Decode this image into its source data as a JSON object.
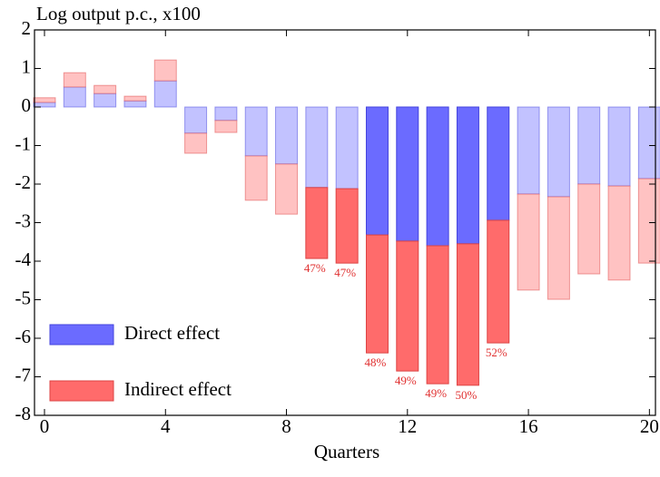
{
  "chart_data": {
    "type": "stacked-bar",
    "y_label": "Log output p.c., x100",
    "x_label": "Quarters",
    "x": [
      0,
      1,
      2,
      3,
      4,
      5,
      6,
      7,
      8,
      9,
      10,
      11,
      12,
      13,
      14,
      15,
      16,
      17,
      18,
      19,
      20
    ],
    "xlim": [
      -0.33,
      20.2
    ],
    "xticks": [
      0,
      4,
      8,
      12,
      16,
      20
    ],
    "ylim": [
      -8,
      2
    ],
    "yticks": [
      -8,
      -7,
      -6,
      -5,
      -4,
      -3,
      -2,
      -1,
      0,
      1,
      2
    ],
    "legend": "lower left",
    "series": [
      {
        "name": "Direct effect",
        "color": "#6b6bff",
        "light_color": "#c2c2ff",
        "edge_color": "#4444dd",
        "highlighted": [
          false,
          false,
          false,
          false,
          false,
          false,
          false,
          false,
          false,
          false,
          false,
          true,
          true,
          true,
          true,
          true,
          false,
          false,
          false,
          false,
          false
        ],
        "values": [
          0.12,
          0.52,
          0.35,
          0.16,
          0.68,
          -0.68,
          -0.35,
          -1.27,
          -1.48,
          -2.09,
          -2.12,
          -3.32,
          -3.48,
          -3.6,
          -3.55,
          -2.94,
          -2.26,
          -2.33,
          -2.0,
          -2.05,
          -1.86
        ]
      },
      {
        "name": "Indirect effect",
        "color": "#ff6b6b",
        "light_color": "#ffc2c2",
        "edge_color": "#dd4444",
        "highlighted": [
          false,
          false,
          false,
          false,
          false,
          false,
          false,
          false,
          false,
          true,
          true,
          true,
          true,
          true,
          true,
          true,
          false,
          false,
          false,
          false,
          false
        ],
        "values": [
          0.12,
          0.37,
          0.21,
          0.12,
          0.54,
          -0.52,
          -0.31,
          -1.15,
          -1.3,
          -1.84,
          -1.93,
          -3.06,
          -3.37,
          -3.58,
          -3.67,
          -3.18,
          -2.49,
          -2.66,
          -2.33,
          -2.44,
          -2.19
        ],
        "share_labels": [
          null,
          null,
          null,
          null,
          null,
          null,
          null,
          null,
          null,
          "47%",
          "47%",
          "48%",
          "49%",
          "49%",
          "50%",
          "52%",
          null,
          null,
          null,
          null,
          null
        ]
      }
    ]
  }
}
